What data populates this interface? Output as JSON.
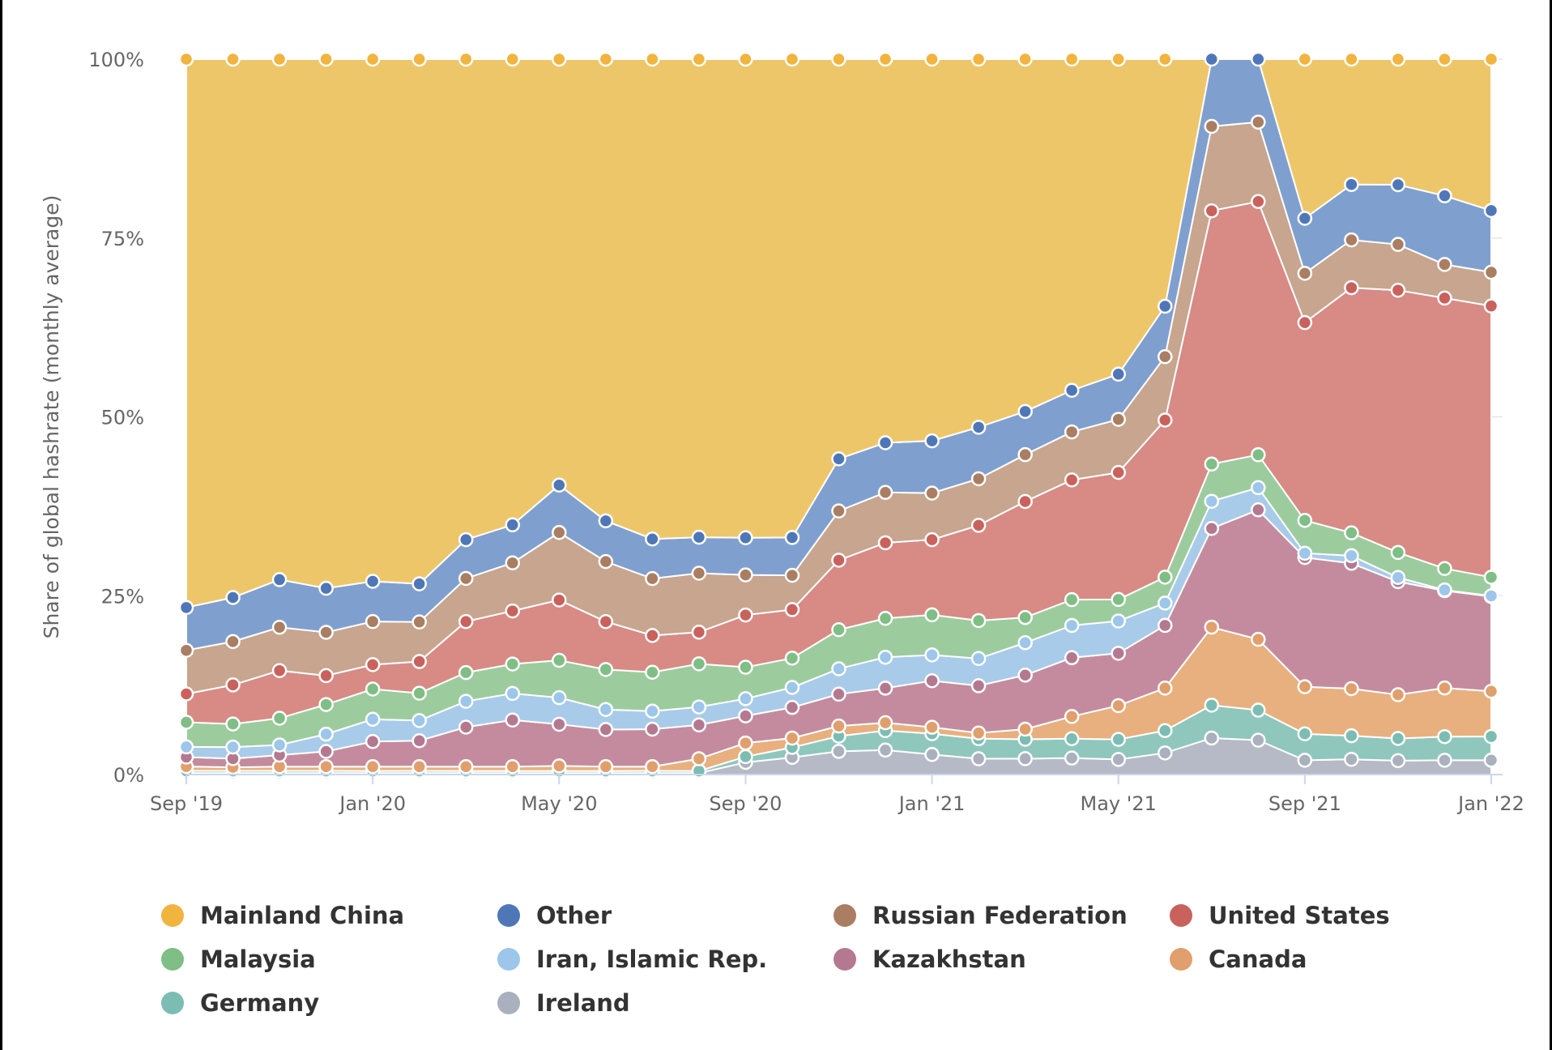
{
  "chart_data": {
    "type": "area",
    "stacking": "percent",
    "title": "",
    "xlabel": "",
    "ylabel": "Share of global hashrate (monthly average)",
    "ylim": [
      0,
      100
    ],
    "y_ticks": [
      "0%",
      "25%",
      "50%",
      "75%",
      "100%"
    ],
    "x_ticks": [
      "Sep '19",
      "Jan '20",
      "May '20",
      "Sep '20",
      "Jan '21",
      "May '21",
      "Sep '21",
      "Jan '22"
    ],
    "grid": true,
    "legend_position": "bottom",
    "x": [
      "2019-09",
      "2019-10",
      "2019-11",
      "2019-12",
      "2020-01",
      "2020-02",
      "2020-03",
      "2020-04",
      "2020-05",
      "2020-06",
      "2020-07",
      "2020-08",
      "2020-09",
      "2020-10",
      "2020-11",
      "2020-12",
      "2021-01",
      "2021-02",
      "2021-03",
      "2021-04",
      "2021-05",
      "2021-06",
      "2021-07",
      "2021-08",
      "2021-09",
      "2021-10",
      "2021-11",
      "2021-12",
      "2022-01"
    ],
    "series": [
      {
        "name": "Ireland",
        "color": "#b5bac6",
        "values": [
          0.2,
          0.2,
          0.2,
          0.2,
          0.2,
          0.2,
          0.2,
          0.2,
          0.2,
          0.2,
          0.2,
          0.2,
          1.7,
          2.4,
          3.2,
          3.4,
          2.8,
          2.2,
          2.2,
          2.3,
          2.1,
          3.0,
          5.1,
          4.8,
          2.0,
          2.2,
          2.0,
          2.0,
          2.0
        ]
      },
      {
        "name": "Germany",
        "color": "#8fc7bd",
        "values": [
          0.3,
          0.3,
          0.3,
          0.3,
          0.3,
          0.3,
          0.3,
          0.3,
          0.3,
          0.3,
          0.3,
          0.3,
          0.8,
          1.4,
          2.1,
          2.7,
          2.9,
          2.8,
          2.7,
          2.7,
          2.8,
          3.1,
          4.6,
          4.2,
          3.7,
          3.4,
          3.2,
          3.3,
          3.3
        ]
      },
      {
        "name": "Canada",
        "color": "#e8b07e",
        "values": [
          0.6,
          0.5,
          0.6,
          0.6,
          0.6,
          0.6,
          0.6,
          0.6,
          0.7,
          0.6,
          0.6,
          1.7,
          1.9,
          1.3,
          1.4,
          1.1,
          0.9,
          0.8,
          1.4,
          3.1,
          4.7,
          5.9,
          10.9,
          9.9,
          6.6,
          6.8,
          6.3,
          6.8,
          6.3
        ]
      },
      {
        "name": "Kazakhstan",
        "color": "#c48b9e",
        "values": [
          1.3,
          1.2,
          1.6,
          2.1,
          3.5,
          3.6,
          5.5,
          6.5,
          5.8,
          5.2,
          5.2,
          4.7,
          3.8,
          4.3,
          4.4,
          4.8,
          6.5,
          6.6,
          7.5,
          8.2,
          7.3,
          8.7,
          13.8,
          18.1,
          18.1,
          18.1,
          16.3,
          13.6,
          13.2
        ]
      },
      {
        "name": "Iran, Islamic Rep.",
        "color": "#a8cbea",
        "values": [
          1.4,
          1.6,
          1.4,
          2.4,
          3.1,
          2.8,
          3.6,
          3.7,
          3.7,
          2.8,
          2.5,
          2.5,
          2.4,
          2.8,
          3.5,
          4.3,
          3.6,
          3.8,
          4.5,
          4.5,
          4.5,
          3.1,
          3.8,
          3.1,
          0.6,
          1.1,
          0.6,
          0.1,
          0.1
        ]
      },
      {
        "name": "Malaysia",
        "color": "#9ccc9d",
        "values": [
          3.4,
          3.2,
          3.7,
          4.1,
          4.2,
          3.8,
          4.0,
          4.1,
          5.2,
          5.6,
          5.4,
          6.0,
          4.4,
          4.1,
          5.4,
          5.4,
          5.6,
          5.3,
          3.5,
          3.6,
          3.0,
          3.6,
          5.2,
          4.6,
          4.6,
          3.3,
          3.6,
          3.0,
          2.6
        ]
      },
      {
        "name": "United States",
        "color": "#d88a85",
        "values": [
          3.9,
          5.4,
          6.6,
          4.0,
          3.4,
          4.4,
          7.1,
          7.4,
          8.4,
          6.7,
          5.1,
          4.4,
          7.3,
          6.8,
          9.6,
          10.5,
          10.5,
          13.3,
          16.1,
          16.7,
          17.7,
          21.8,
          35.4,
          35.4,
          27.7,
          35.4,
          37.8,
          37.8,
          37.8
        ]
      },
      {
        "name": "Russian Federation",
        "color": "#c7a58e",
        "values": [
          6.0,
          6.0,
          6.0,
          6.0,
          6.0,
          5.5,
          6.0,
          6.7,
          9.4,
          8.4,
          7.9,
          8.2,
          5.6,
          4.8,
          6.8,
          7.0,
          6.5,
          6.5,
          6.5,
          6.7,
          7.4,
          8.8,
          11.8,
          11.1,
          6.9,
          6.9,
          6.6,
          4.7,
          4.7
        ]
      },
      {
        "name": "Other",
        "color": "#7fa0cf",
        "values": [
          5.9,
          6.1,
          6.6,
          6.1,
          5.6,
          5.3,
          5.4,
          5.3,
          6.6,
          5.7,
          5.5,
          5.0,
          5.2,
          5.3,
          7.2,
          6.9,
          7.3,
          7.2,
          6.0,
          5.8,
          6.3,
          7.0,
          9.4,
          8.8,
          7.7,
          8.0,
          8.6,
          9.6,
          8.6
        ]
      },
      {
        "name": "Mainland China",
        "color": "#eec66a",
        "values": [
          75.5,
          74.5,
          72.1,
          73.3,
          72.7,
          72.9,
          66.9,
          64.9,
          59.3,
          64.6,
          66.6,
          66.5,
          66.9,
          67.0,
          55.2,
          53.3,
          53.3,
          51.4,
          48.9,
          46.2,
          43.9,
          34.3,
          0,
          0,
          22.3,
          18.1,
          18.1,
          19.1,
          21.1
        ]
      }
    ],
    "legend_order": [
      "Mainland China",
      "Other",
      "Russian Federation",
      "United States",
      "Malaysia",
      "Iran, Islamic Rep.",
      "Kazakhstan",
      "Canada",
      "Germany",
      "Ireland"
    ],
    "marker_colors": {
      "Mainland China": "#f1b43e",
      "Other": "#4f77b8",
      "Russian Federation": "#a97e62",
      "United States": "#c9625d",
      "Malaysia": "#7fbe85",
      "Iran, Islamic Rep.": "#9cc6ea",
      "Kazakhstan": "#b47990",
      "Canada": "#e09f6c",
      "Germany": "#7bbdb2",
      "Ireland": "#aab0bd"
    }
  }
}
